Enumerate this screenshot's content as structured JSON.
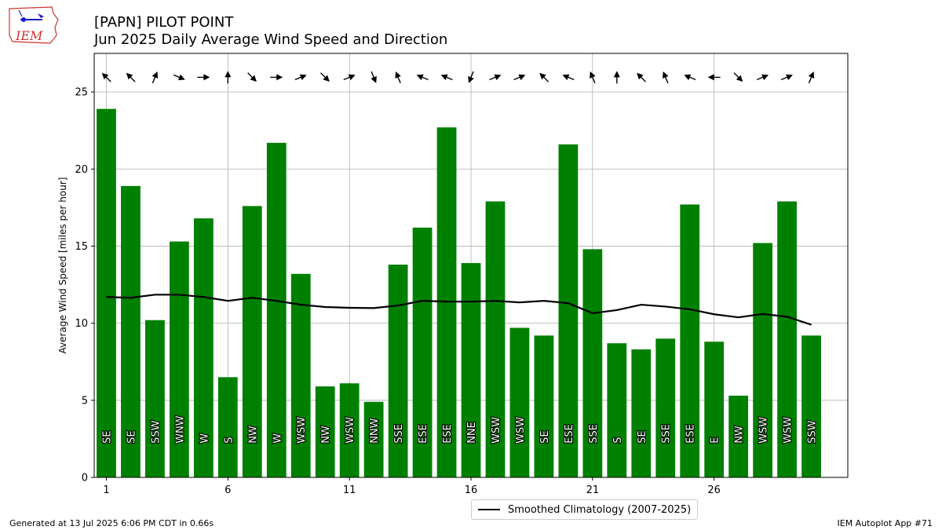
{
  "header": {
    "title": "[PAPN] PILOT POINT",
    "subtitle": "Jun 2025 Daily Average Wind Speed and Direction"
  },
  "logo": {
    "text": "IEM",
    "icon": "iowa-state-outline-icon"
  },
  "footer": {
    "left": "Generated at 13 Jul 2025 6:06 PM CDT in 0.66s",
    "right": "IEM Autoplot App #71"
  },
  "legend": {
    "label": "Smoothed Climatology (2007-2025)"
  },
  "colors": {
    "bar": "#008000",
    "climo": "#000000",
    "grid": "#b0b0b0",
    "arrow": "#000000"
  },
  "chart_data": {
    "type": "bar",
    "title": "[PAPN] PILOT POINT",
    "subtitle": "Jun 2025 Daily Average Wind Speed and Direction",
    "xlabel": "",
    "ylabel": "Average Wind Speed [miles per hour]",
    "xlim": [
      0.5,
      31.5
    ],
    "ylim": [
      0,
      27.5
    ],
    "xticks": [
      1,
      6,
      11,
      16,
      21,
      26
    ],
    "yticks": [
      0,
      5,
      10,
      15,
      20,
      25
    ],
    "grid": true,
    "legend_position": "bottom-center",
    "days": [
      1,
      2,
      3,
      4,
      5,
      6,
      7,
      8,
      9,
      10,
      11,
      12,
      13,
      14,
      15,
      16,
      17,
      18,
      19,
      20,
      21,
      22,
      23,
      24,
      25,
      26,
      27,
      28,
      29,
      30
    ],
    "speed": [
      23.9,
      18.9,
      10.2,
      15.3,
      16.8,
      6.5,
      17.6,
      21.7,
      13.2,
      5.9,
      6.1,
      4.9,
      13.8,
      16.2,
      22.7,
      13.9,
      17.9,
      9.7,
      9.2,
      21.6,
      14.8,
      8.7,
      8.3,
      9.0,
      17.7,
      8.8,
      5.3,
      15.2,
      17.9,
      9.2
    ],
    "direction_labels": [
      "SE",
      "SE",
      "SSW",
      "WNW",
      "W",
      "S",
      "NW",
      "W",
      "WSW",
      "NW",
      "WSW",
      "NNW",
      "SSE",
      "ESE",
      "ESE",
      "NNE",
      "WSW",
      "WSW",
      "SE",
      "ESE",
      "SSE",
      "S",
      "SE",
      "SSE",
      "ESE",
      "E",
      "NW",
      "WSW",
      "WSW",
      "SSW"
    ],
    "direction_from_deg": [
      135,
      135,
      202.5,
      292.5,
      270,
      180,
      315,
      270,
      247.5,
      315,
      247.5,
      337.5,
      157.5,
      112.5,
      112.5,
      22.5,
      247.5,
      247.5,
      135,
      112.5,
      157.5,
      180,
      135,
      157.5,
      112.5,
      90,
      315,
      247.5,
      247.5,
      202.5
    ],
    "climatology": {
      "name": "Smoothed Climatology (2007-2025)",
      "values": [
        11.7,
        11.65,
        11.85,
        11.85,
        11.7,
        11.45,
        11.65,
        11.45,
        11.2,
        11.05,
        11.0,
        10.98,
        11.15,
        11.45,
        11.4,
        11.4,
        11.45,
        11.35,
        11.45,
        11.3,
        10.65,
        10.85,
        11.2,
        11.08,
        10.9,
        10.58,
        10.38,
        10.6,
        10.42,
        9.9
      ]
    }
  }
}
